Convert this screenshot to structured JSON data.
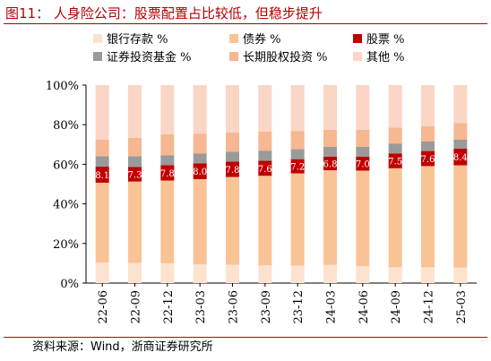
{
  "figure": {
    "title": "图11： 人身险公司：股票配置占比较低，但稳步提升",
    "source": "资料来源：Wind，浙商证券研究所"
  },
  "chart_data": {
    "type": "bar",
    "stacked": true,
    "categories": [
      "22-06",
      "22-09",
      "22-12",
      "23-03",
      "23-06",
      "23-09",
      "23-12",
      "24-03",
      "24-06",
      "24-09",
      "24-12",
      "25-03"
    ],
    "ylim": [
      0,
      100
    ],
    "yticks": [
      "0%",
      "20%",
      "40%",
      "60%",
      "80%",
      "100%"
    ],
    "legend_position": "top",
    "series": [
      {
        "name": "银行存款 %",
        "color": "#fde2cf",
        "values": [
          10.4,
          10.2,
          10.0,
          9.5,
          9.3,
          8.9,
          8.8,
          9.2,
          8.5,
          8.0,
          8.0,
          7.8
        ]
      },
      {
        "name": "债券 %",
        "color": "#f9c396",
        "values": [
          40.3,
          41.1,
          41.8,
          43.0,
          44.3,
          45.3,
          46.6,
          47.8,
          48.3,
          50.0,
          51.1,
          51.7
        ]
      },
      {
        "name": "股票 %",
        "color": "#c00000",
        "values": [
          8.1,
          7.3,
          7.8,
          8.0,
          7.8,
          7.6,
          7.2,
          6.8,
          7.0,
          7.5,
          7.6,
          8.4
        ]
      },
      {
        "name": "证券投资基金 %",
        "color": "#9a9a9a",
        "values": [
          5.3,
          5.5,
          5.0,
          5.0,
          5.0,
          5.1,
          5.0,
          5.0,
          5.0,
          5.0,
          4.8,
          4.5
        ]
      },
      {
        "name": "长期股权投资 %",
        "color": "#f6b791",
        "values": [
          8.4,
          9.3,
          10.5,
          10.0,
          9.6,
          9.6,
          9.1,
          8.6,
          8.7,
          8.1,
          7.8,
          8.5
        ]
      },
      {
        "name": "其他 %",
        "color": "#fbd5c5",
        "values": [
          27.5,
          26.6,
          24.9,
          24.5,
          24.0,
          23.5,
          23.3,
          22.6,
          22.5,
          21.4,
          20.7,
          19.1
        ]
      }
    ],
    "data_labels_series": "股票 %",
    "data_labels": [
      "8.1",
      "7.3",
      "7.8",
      "8.0",
      "7.8",
      "7.6",
      "7.2",
      "6.8",
      "7.0",
      "7.5",
      "7.6",
      "8.4"
    ]
  }
}
